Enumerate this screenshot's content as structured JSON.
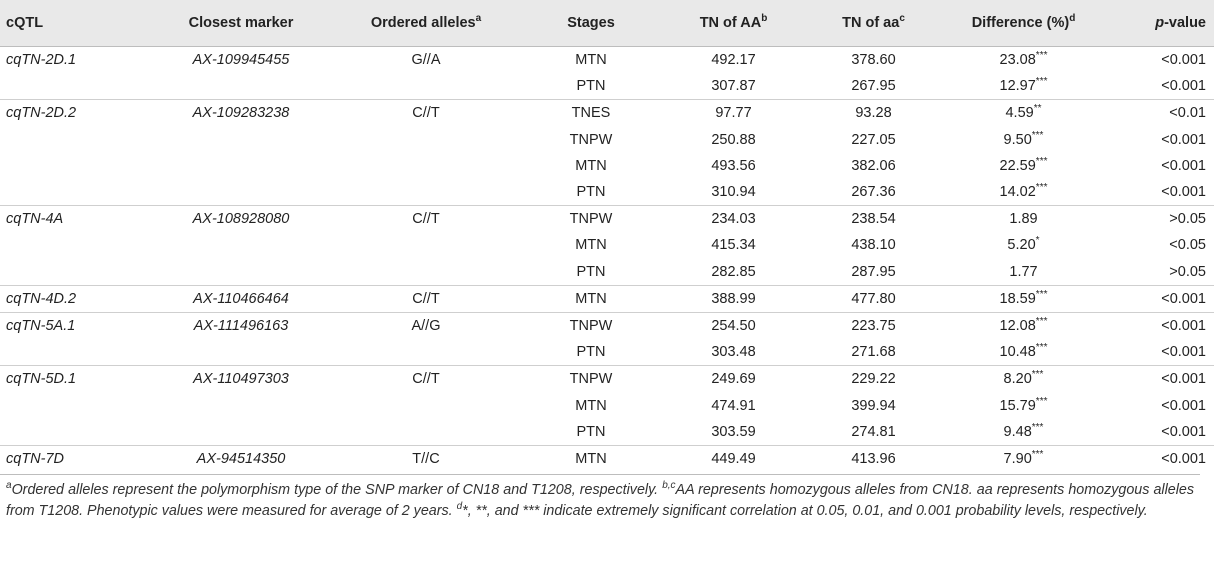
{
  "headers": {
    "cqtl": "cQTL",
    "marker": "Closest marker",
    "alleles": "Ordered alleles",
    "alleles_sup": "a",
    "stages": "Stages",
    "aa_big": "TN of AA",
    "aa_big_sup": "b",
    "aa_small": "TN of aa",
    "aa_small_sup": "c",
    "diff": "Difference (%)",
    "diff_sup": "d",
    "p_italic": "p",
    "p_rest": "-value"
  },
  "rows": [
    {
      "cqtl": "cqTN-2D.1",
      "marker": "AX-109945455",
      "alleles": "G//A",
      "stage": "MTN",
      "aa_big": "492.17",
      "aa_small": "378.60",
      "diff": "23.08",
      "sig": "***",
      "p": "<0.001"
    },
    {
      "cqtl": "",
      "marker": "",
      "alleles": "",
      "stage": "PTN",
      "aa_big": "307.87",
      "aa_small": "267.95",
      "diff": "12.97",
      "sig": "***",
      "p": "<0.001"
    },
    {
      "cqtl": "cqTN-2D.2",
      "marker": "AX-109283238",
      "alleles": "C//T",
      "stage": "TNES",
      "aa_big": "97.77",
      "aa_small": "93.28",
      "diff": "4.59",
      "sig": "**",
      "p": "<0.01"
    },
    {
      "cqtl": "",
      "marker": "",
      "alleles": "",
      "stage": "TNPW",
      "aa_big": "250.88",
      "aa_small": "227.05",
      "diff": "9.50",
      "sig": "***",
      "p": "<0.001"
    },
    {
      "cqtl": "",
      "marker": "",
      "alleles": "",
      "stage": "MTN",
      "aa_big": "493.56",
      "aa_small": "382.06",
      "diff": "22.59",
      "sig": "***",
      "p": "<0.001"
    },
    {
      "cqtl": "",
      "marker": "",
      "alleles": "",
      "stage": "PTN",
      "aa_big": "310.94",
      "aa_small": "267.36",
      "diff": "14.02",
      "sig": "***",
      "p": "<0.001"
    },
    {
      "cqtl": "cqTN-4A",
      "marker": "AX-108928080",
      "alleles": "C//T",
      "stage": "TNPW",
      "aa_big": "234.03",
      "aa_small": "238.54",
      "diff": "1.89",
      "sig": "",
      "p": ">0.05"
    },
    {
      "cqtl": "",
      "marker": "",
      "alleles": "",
      "stage": "MTN",
      "aa_big": "415.34",
      "aa_small": "438.10",
      "diff": "5.20",
      "sig": "*",
      "p": "<0.05"
    },
    {
      "cqtl": "",
      "marker": "",
      "alleles": "",
      "stage": "PTN",
      "aa_big": "282.85",
      "aa_small": "287.95",
      "diff": "1.77",
      "sig": "",
      "p": ">0.05"
    },
    {
      "cqtl": "cqTN-4D.2",
      "marker": "AX-110466464",
      "alleles": "C//T",
      "stage": "MTN",
      "aa_big": "388.99",
      "aa_small": "477.80",
      "diff": "18.59",
      "sig": "***",
      "p": "<0.001"
    },
    {
      "cqtl": "cqTN-5A.1",
      "marker": "AX-111496163",
      "alleles": "A//G",
      "stage": "TNPW",
      "aa_big": "254.50",
      "aa_small": "223.75",
      "diff": "12.08",
      "sig": "***",
      "p": "<0.001"
    },
    {
      "cqtl": "",
      "marker": "",
      "alleles": "",
      "stage": "PTN",
      "aa_big": "303.48",
      "aa_small": "271.68",
      "diff": "10.48",
      "sig": "***",
      "p": "<0.001"
    },
    {
      "cqtl": "cqTN-5D.1",
      "marker": "AX-110497303",
      "alleles": "C//T",
      "stage": "TNPW",
      "aa_big": "249.69",
      "aa_small": "229.22",
      "diff": "8.20",
      "sig": "***",
      "p": "<0.001"
    },
    {
      "cqtl": "",
      "marker": "",
      "alleles": "",
      "stage": "MTN",
      "aa_big": "474.91",
      "aa_small": "399.94",
      "diff": "15.79",
      "sig": "***",
      "p": "<0.001"
    },
    {
      "cqtl": "",
      "marker": "",
      "alleles": "",
      "stage": "PTN",
      "aa_big": "303.59",
      "aa_small": "274.81",
      "diff": "9.48",
      "sig": "***",
      "p": "<0.001"
    },
    {
      "cqtl": "cqTN-7D",
      "marker": "AX-94514350",
      "alleles": "T//C",
      "stage": "MTN",
      "aa_big": "449.49",
      "aa_small": "413.96",
      "diff": "7.90",
      "sig": "***",
      "p": "<0.001"
    }
  ],
  "footnotes": [
    {
      "sup": "a",
      "text": "Ordered alleles represent the polymorphism type of the SNP marker of CN18 and T1208, respectively. "
    },
    {
      "sup": "b,c",
      "text": "AA represents homozygous alleles from CN18. aa represents homozygous alleles from T1208. Phenotypic values were measured for average of 2 years. "
    },
    {
      "sup": "d",
      "text": "*, **, and *** indicate extremely significant correlation at 0.05, 0.01, and 0.001 probability levels, respectively."
    }
  ]
}
